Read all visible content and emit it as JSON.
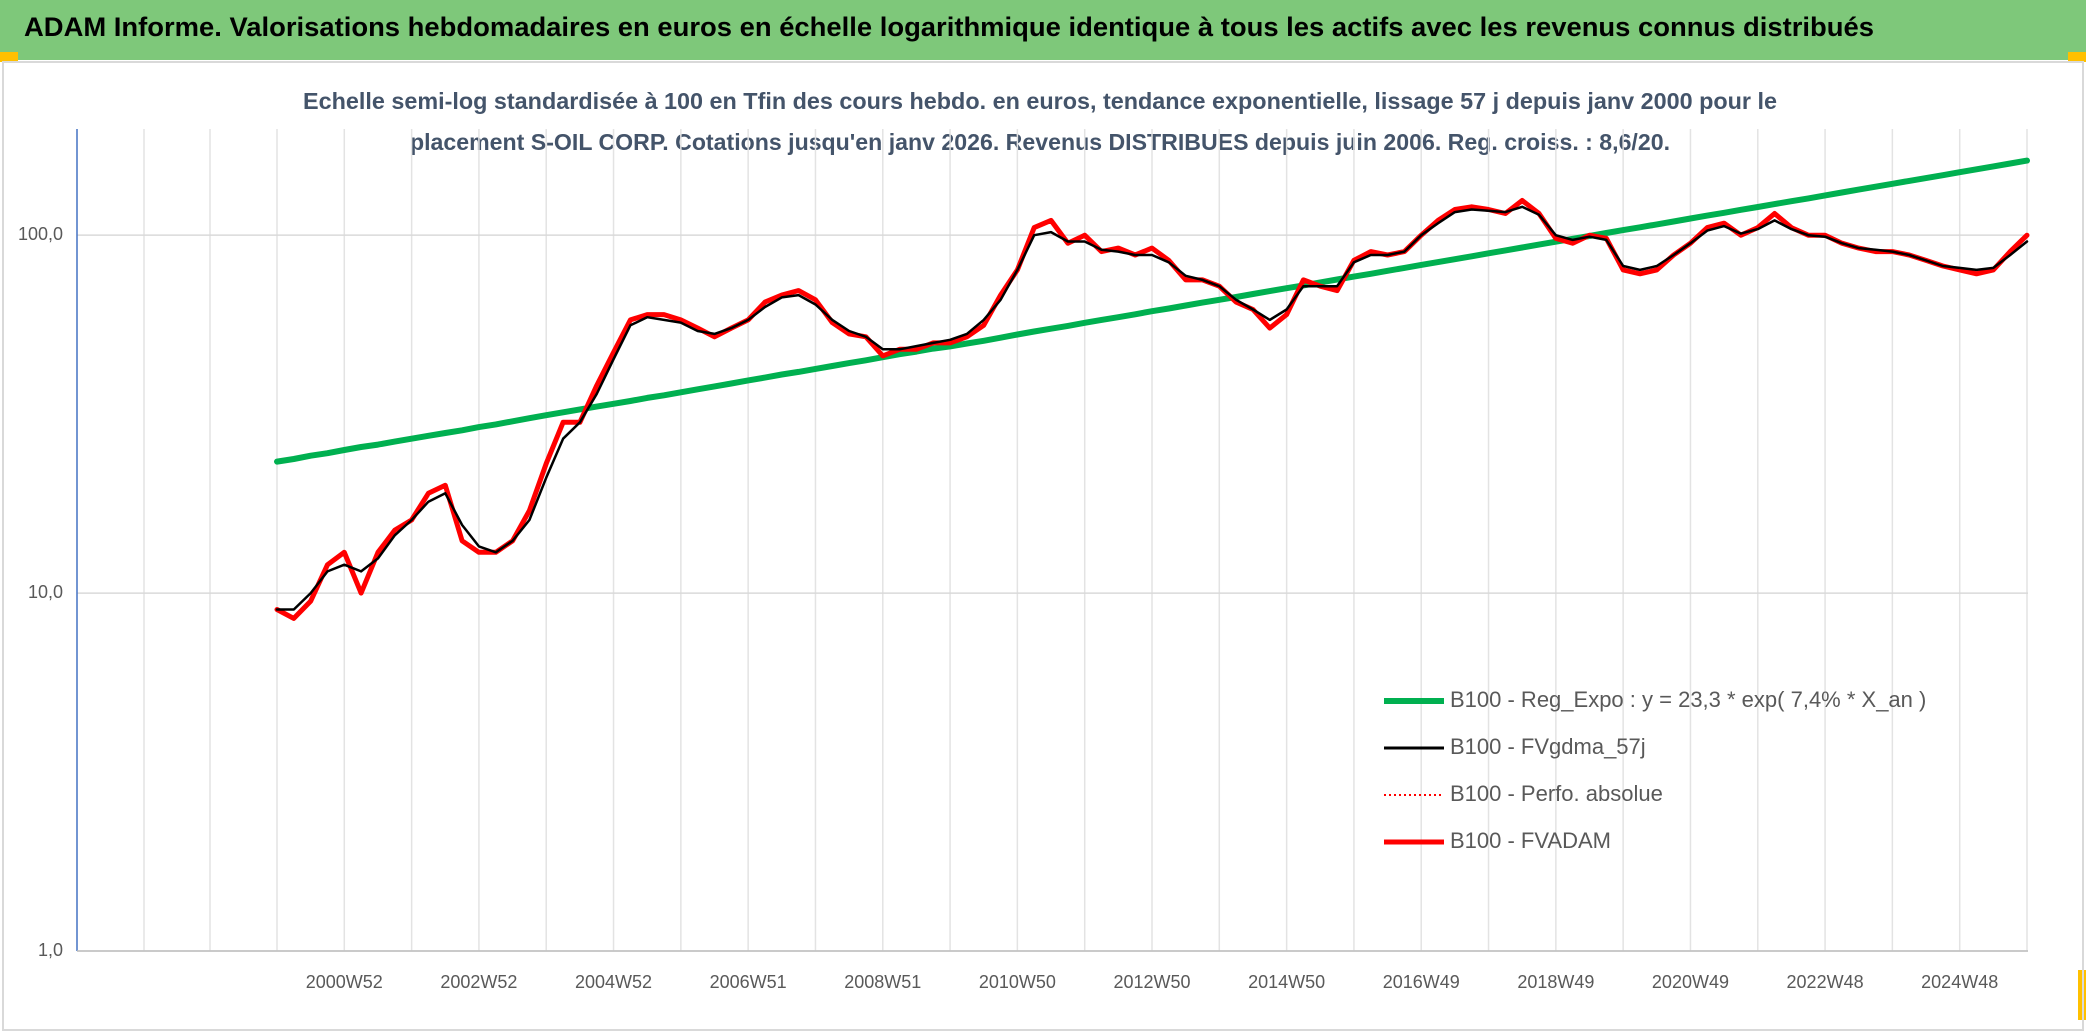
{
  "chart_data": {
    "type": "line",
    "title": "ADAM Informe. Valorisations hebdomadaires en euros en échelle logarithmique identique à tous les actifs avec les revenus connus distribués",
    "subtitle": [
      "Echelle semi-log standardisée à 100 en Tfin des cours hebdo. en euros, tendance exponentielle, lissage 57 j depuis janv 2000 pour le",
      "placement S-OIL CORP. Cotations jusqu'en janv 2026. Revenus DISTRIBUES depuis juin 2006. Reg. croiss. : 8,6/20."
    ],
    "log_scale": true,
    "grid": true,
    "legend": "lower right",
    "ylim": [
      1,
      198
    ],
    "yticks": [
      {
        "value": 1,
        "label": "1,0"
      },
      {
        "value": 10,
        "label": "10,0"
      },
      {
        "value": 100,
        "label": "100,0"
      }
    ],
    "categories": [
      null,
      null,
      null,
      null,
      "2000W52",
      null,
      null,
      null,
      null,
      null,
      null,
      null,
      "2002W52",
      null,
      null,
      null,
      null,
      null,
      null,
      null,
      "2004W52",
      null,
      null,
      null,
      null,
      null,
      null,
      null,
      "2006W51",
      null,
      null,
      null,
      null,
      null,
      null,
      null,
      "2008W51",
      null,
      null,
      null,
      null,
      null,
      null,
      null,
      "2010W50",
      null,
      null,
      null,
      null,
      null,
      null,
      null,
      "2012W50",
      null,
      null,
      null,
      null,
      null,
      null,
      null,
      "2014W50",
      null,
      null,
      null,
      null,
      null,
      null,
      null,
      "2016W49",
      null,
      null,
      null,
      null,
      null,
      null,
      null,
      "2018W49",
      null,
      null,
      null,
      null,
      null,
      null,
      null,
      "2020W49",
      null,
      null,
      null,
      null,
      null,
      null,
      null,
      "2022W48",
      null,
      null,
      null,
      null,
      null,
      null,
      null,
      "2024W48",
      null,
      null,
      null,
      null
    ],
    "series": [
      {
        "name": "B100 - Reg_Expo : y = 23,3 * exp( 7,4% *  X_an )",
        "color": "#00b050",
        "line_style": "solid",
        "values": [
          23.3,
          23.7,
          24.2,
          24.6,
          25.1,
          25.6,
          26.0,
          26.5,
          27.0,
          27.5,
          28.0,
          28.5,
          29.1,
          29.6,
          30.2,
          30.8,
          31.4,
          32.0,
          32.6,
          33.2,
          33.8,
          34.4,
          35.1,
          35.7,
          36.4,
          37.1,
          37.8,
          38.5,
          39.3,
          40.0,
          40.8,
          41.5,
          42.3,
          43.1,
          43.9,
          44.7,
          45.6,
          46.5,
          47.3,
          48.2,
          48.9,
          49.8,
          50.7,
          51.7,
          52.8,
          53.8,
          54.8,
          55.8,
          56.9,
          58.0,
          59.0,
          60.1,
          61.3,
          62.4,
          63.6,
          64.8,
          66.0,
          67.2,
          68.5,
          69.8,
          71.1,
          72.4,
          73.8,
          75.2,
          76.6,
          78.0,
          79.5,
          81.0,
          82.6,
          84.1,
          85.7,
          87.3,
          89.0,
          90.7,
          92.4,
          94.1,
          95.9,
          97.7,
          99.5,
          101.4,
          103.3,
          105.2,
          107.2,
          109.2,
          111.3,
          113.4,
          115.5,
          117.7,
          119.9,
          122.1,
          124.4,
          126.7,
          129.2,
          131.6,
          134.1,
          136.6,
          139.2,
          141.8,
          144.4,
          147.1,
          150.0,
          152.8,
          155.7,
          158.6,
          161.6
        ]
      },
      {
        "name": "B100 - FVgdma_57j",
        "color": "#000000",
        "line_style": "solid",
        "values": [
          9,
          9,
          10,
          11.5,
          12,
          11.5,
          12.5,
          14.5,
          16,
          18,
          19,
          15.5,
          13.5,
          13,
          14,
          16,
          21,
          27,
          30,
          36,
          45,
          56,
          59,
          58,
          57,
          54,
          53,
          55,
          58,
          63,
          67,
          68,
          64,
          58,
          54,
          52,
          48,
          48,
          49,
          50,
          51,
          53,
          58,
          66,
          80,
          100,
          102,
          96,
          96,
          91,
          90,
          88,
          88,
          84,
          77,
          75,
          72,
          66,
          62,
          58,
          62,
          72,
          72,
          72,
          84,
          88,
          88,
          90,
          100,
          108,
          116,
          118,
          117,
          116,
          120,
          114,
          100,
          97,
          99,
          97,
          82,
          80,
          82,
          88,
          95,
          103,
          106,
          101,
          104,
          110,
          104,
          100,
          99,
          95,
          92,
          91,
          90,
          88,
          85,
          82,
          81,
          80,
          81,
          88,
          96
        ]
      },
      {
        "name": "B100 - Perfo. absolue",
        "color": "#ff0000",
        "line_style": "dotted",
        "values": [
          9,
          8.5,
          9.5,
          12,
          13,
          10,
          13,
          15,
          16,
          19,
          20,
          14,
          13,
          13,
          14,
          17,
          23,
          30,
          30,
          38,
          47,
          58,
          60,
          60,
          58,
          55,
          52,
          55,
          58,
          65,
          68,
          70,
          66,
          57,
          53,
          52,
          46,
          48,
          48,
          50,
          50,
          52,
          56,
          68,
          80,
          105,
          110,
          95,
          100,
          90,
          92,
          88,
          92,
          85,
          75,
          75,
          72,
          65,
          62,
          55,
          60,
          75,
          72,
          70,
          85,
          90,
          88,
          90,
          100,
          110,
          118,
          120,
          118,
          115,
          125,
          115,
          98,
          95,
          100,
          98,
          80,
          78,
          80,
          88,
          95,
          105,
          108,
          100,
          105,
          115,
          105,
          100,
          100,
          95,
          92,
          90,
          90,
          88,
          85,
          82,
          80,
          78,
          80,
          90,
          100
        ]
      },
      {
        "name": "B100 - FVADAM",
        "color": "#ff0000",
        "line_style": "solid",
        "values": [
          9,
          8.5,
          9.5,
          12,
          13,
          10,
          13,
          15,
          16,
          19,
          20,
          14,
          13,
          13,
          14,
          17,
          23,
          30,
          30,
          38,
          47,
          58,
          60,
          60,
          58,
          55,
          52,
          55,
          58,
          65,
          68,
          70,
          66,
          57,
          53,
          52,
          46,
          48,
          48,
          50,
          50,
          52,
          56,
          68,
          80,
          105,
          110,
          95,
          100,
          90,
          92,
          88,
          92,
          85,
          75,
          75,
          72,
          65,
          62,
          55,
          60,
          75,
          72,
          70,
          85,
          90,
          88,
          90,
          100,
          110,
          118,
          120,
          118,
          115,
          125,
          115,
          98,
          95,
          100,
          98,
          80,
          78,
          80,
          88,
          95,
          105,
          108,
          100,
          105,
          115,
          105,
          100,
          100,
          95,
          92,
          90,
          90,
          88,
          85,
          82,
          80,
          78,
          80,
          90,
          100
        ]
      }
    ]
  }
}
